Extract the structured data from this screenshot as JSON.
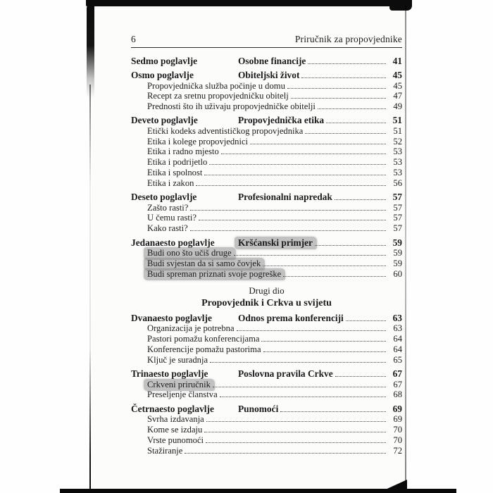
{
  "page": {
    "page_number": "6",
    "running_title": "Priručnik za propovjednike"
  },
  "highlight_color": "#7c7c7c",
  "toc": {
    "entries": [
      {
        "kind": "chapter",
        "label": "Sedmo poglavlje",
        "title": "Osobne financije",
        "page": "41",
        "highlight": false
      },
      {
        "kind": "chapter",
        "label": "Osmo poglavlje",
        "title": "Obiteljski život",
        "page": "45",
        "highlight": false
      },
      {
        "kind": "sub",
        "title": "Propovjednička služba počinje u domu",
        "page": "45",
        "highlight": false
      },
      {
        "kind": "sub",
        "title": "Recept za sretnu propovjedničku obitelj",
        "page": "47",
        "highlight": false
      },
      {
        "kind": "sub",
        "title": "Prednosti što ih uživaju propovjedničke obitelji",
        "page": "49",
        "highlight": false
      },
      {
        "kind": "chapter",
        "label": "Deveto poglavlje",
        "title": "Propovjednička etika",
        "page": "51",
        "highlight": false
      },
      {
        "kind": "sub",
        "title": "Etički kodeks adventističkog propovjednika",
        "page": "51",
        "highlight": false
      },
      {
        "kind": "sub",
        "title": "Etika i kolege propovjednici",
        "page": "52",
        "highlight": false
      },
      {
        "kind": "sub",
        "title": "Etika i radno mjesto",
        "page": "53",
        "highlight": false
      },
      {
        "kind": "sub",
        "title": "Etika i podrijetlo",
        "page": "53",
        "highlight": false
      },
      {
        "kind": "sub",
        "title": "Etika i spolnost",
        "page": "53",
        "highlight": false
      },
      {
        "kind": "sub",
        "title": "Etika i zakon",
        "page": "56",
        "highlight": false
      },
      {
        "kind": "chapter",
        "label": "Deseto poglavlje",
        "title": "Profesionalni napredak",
        "page": "57",
        "highlight": false
      },
      {
        "kind": "sub",
        "title": "Zašto rasti?",
        "page": "57",
        "highlight": false
      },
      {
        "kind": "sub",
        "title": "U čemu rasti?",
        "page": "57",
        "highlight": false
      },
      {
        "kind": "sub",
        "title": "Kako rasti?",
        "page": "57",
        "highlight": false
      },
      {
        "kind": "chapter",
        "label": "Jedanaesto poglavlje",
        "title": "Kršćanski primjer",
        "page": "59",
        "highlight": true
      },
      {
        "kind": "sub",
        "title": "Budi ono što učiš druge",
        "page": "59",
        "highlight": true
      },
      {
        "kind": "sub",
        "title": "Budi svjestan da si samo čovjek",
        "page": "59",
        "highlight": true
      },
      {
        "kind": "sub",
        "title": "Budi spreman priznati svoje pogreške",
        "page": "60",
        "highlight": true
      },
      {
        "kind": "part",
        "part_label": "Drugi dio",
        "part_title": "Propovjednik i Crkva u svijetu"
      },
      {
        "kind": "chapter",
        "label": "Dvanaesto poglavlje",
        "title": "Odnos prema konferenciji",
        "page": "63",
        "highlight": false
      },
      {
        "kind": "sub",
        "title": "Organizacija je potrebna",
        "page": "63",
        "highlight": false
      },
      {
        "kind": "sub",
        "title": "Pastori pomažu konferencijama",
        "page": "64",
        "highlight": false
      },
      {
        "kind": "sub",
        "title": "Konferencije pomažu pastorima",
        "page": "64",
        "highlight": false
      },
      {
        "kind": "sub",
        "title": "Ključ je suradnja",
        "page": "65",
        "highlight": false
      },
      {
        "kind": "chapter",
        "label": "Trinaesto poglavlje",
        "title": "Poslovna pravila Crkve",
        "page": "67",
        "highlight": false
      },
      {
        "kind": "sub",
        "title": "Crkveni priručnik",
        "page": "67",
        "highlight": true
      },
      {
        "kind": "sub",
        "title": "Preseljenje članstva",
        "page": "68",
        "highlight": false
      },
      {
        "kind": "chapter",
        "label": "Četrnaesto poglavlje",
        "title": "Punomoći",
        "page": "69",
        "highlight": false
      },
      {
        "kind": "sub",
        "title": "Svrha izdavanja",
        "page": "69",
        "highlight": false
      },
      {
        "kind": "sub",
        "title": "Kome se izdaju",
        "page": "70",
        "highlight": false
      },
      {
        "kind": "sub",
        "title": "Vrste punomoći",
        "page": "70",
        "highlight": false
      },
      {
        "kind": "sub",
        "title": "Stažiranje",
        "page": "72",
        "highlight": false
      }
    ]
  }
}
